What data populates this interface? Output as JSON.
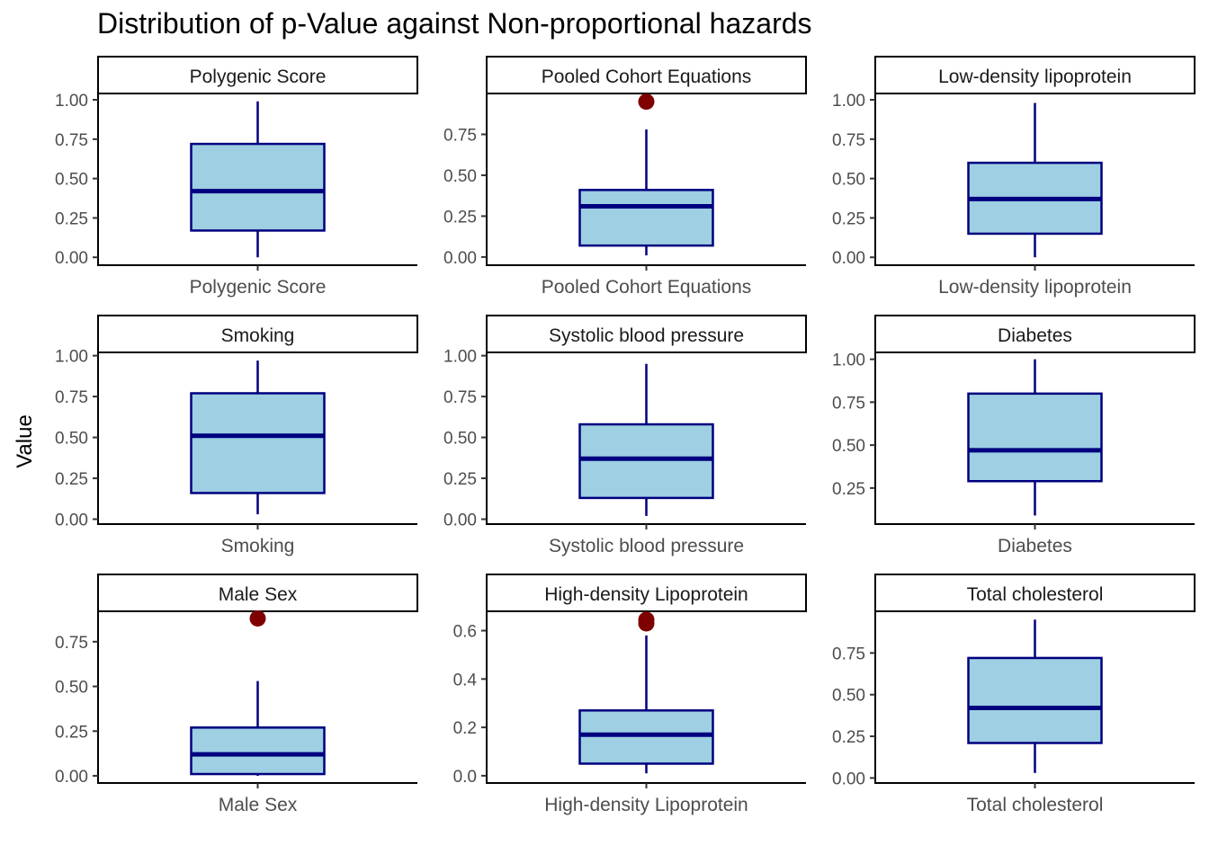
{
  "title": "Distribution of p-Value against Non-proportional hazards",
  "ylabel": "Value",
  "colors": {
    "box_fill": "#9ecfe2",
    "box_line": "#00007f",
    "median": "#00007f",
    "outlier": "#7f0000",
    "axis": "#000000"
  },
  "chart_data": [
    {
      "type": "boxplot",
      "panel": "Polygenic Score",
      "xlabel": "Polygenic Score",
      "ticks": [
        "0.00",
        "0.25",
        "0.50",
        "0.75",
        "1.00"
      ],
      "ylim": [
        -0.05,
        1.04
      ],
      "min": 0.0,
      "q1": 0.17,
      "median": 0.42,
      "q3": 0.72,
      "max": 0.99,
      "outliers": []
    },
    {
      "type": "boxplot",
      "panel": "Pooled Cohort Equations",
      "xlabel": "Pooled Cohort Equations",
      "ticks": [
        "0.00",
        "0.25",
        "0.50",
        "0.75"
      ],
      "ylim": [
        -0.05,
        1.0
      ],
      "min": 0.01,
      "q1": 0.07,
      "median": 0.31,
      "q3": 0.41,
      "max": 0.78,
      "outliers": [
        0.95
      ]
    },
    {
      "type": "boxplot",
      "panel": "Low-density lipoprotein",
      "xlabel": "Low-density lipoprotein",
      "ticks": [
        "0.00",
        "0.25",
        "0.50",
        "0.75",
        "1.00"
      ],
      "ylim": [
        -0.05,
        1.04
      ],
      "min": 0.0,
      "q1": 0.15,
      "median": 0.37,
      "q3": 0.6,
      "max": 0.98,
      "outliers": []
    },
    {
      "type": "boxplot",
      "panel": "Smoking",
      "xlabel": "Smoking",
      "ticks": [
        "0.00",
        "0.25",
        "0.50",
        "0.75",
        "1.00"
      ],
      "ylim": [
        -0.03,
        1.02
      ],
      "min": 0.03,
      "q1": 0.16,
      "median": 0.51,
      "q3": 0.77,
      "max": 0.97,
      "outliers": []
    },
    {
      "type": "boxplot",
      "panel": "Systolic blood pressure",
      "xlabel": "Systolic blood pressure",
      "ticks": [
        "0.00",
        "0.25",
        "0.50",
        "0.75",
        "1.00"
      ],
      "ylim": [
        -0.03,
        1.02
      ],
      "min": 0.02,
      "q1": 0.13,
      "median": 0.37,
      "q3": 0.58,
      "max": 0.95,
      "outliers": []
    },
    {
      "type": "boxplot",
      "panel": "Diabetes",
      "xlabel": "Diabetes",
      "ticks": [
        "0.25",
        "0.50",
        "0.75",
        "1.00"
      ],
      "ylim": [
        0.04,
        1.04
      ],
      "min": 0.09,
      "q1": 0.29,
      "median": 0.47,
      "q3": 0.8,
      "max": 1.0,
      "outliers": []
    },
    {
      "type": "boxplot",
      "panel": "Male Sex",
      "xlabel": "Male Sex",
      "ticks": [
        "0.00",
        "0.25",
        "0.50",
        "0.75"
      ],
      "ylim": [
        -0.04,
        0.92
      ],
      "min": 0.0,
      "q1": 0.01,
      "median": 0.12,
      "q3": 0.27,
      "max": 0.53,
      "outliers": [
        0.88
      ]
    },
    {
      "type": "boxplot",
      "panel": "High-density Lipoprotein",
      "xlabel": "High-density Lipoprotein",
      "ticks": [
        "0.0",
        "0.2",
        "0.4",
        "0.6"
      ],
      "ylim": [
        -0.03,
        0.68
      ],
      "min": 0.01,
      "q1": 0.05,
      "median": 0.17,
      "q3": 0.27,
      "max": 0.58,
      "outliers": [
        0.63,
        0.645
      ]
    },
    {
      "type": "boxplot",
      "panel": "Total cholesterol",
      "xlabel": "Total cholesterol",
      "ticks": [
        "0.00",
        "0.25",
        "0.50",
        "0.75"
      ],
      "ylim": [
        -0.03,
        1.0
      ],
      "min": 0.03,
      "q1": 0.21,
      "median": 0.42,
      "q3": 0.72,
      "max": 0.95,
      "outliers": []
    }
  ]
}
